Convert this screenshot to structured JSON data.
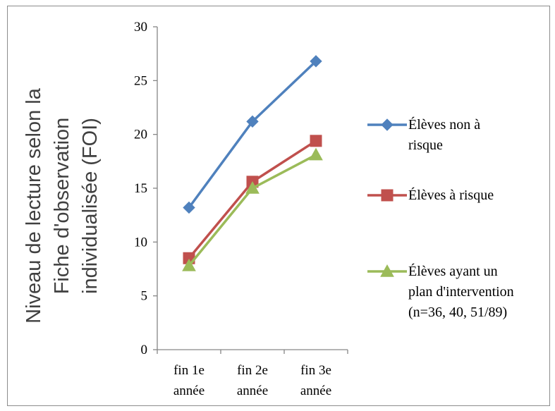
{
  "chart_data": {
    "type": "line",
    "title": "",
    "ylabel_lines": [
      "Niveau de lecture selon la",
      "Fiche d'observation",
      "individualisée (FOI)"
    ],
    "categories": [
      {
        "line1": "fin 1e",
        "line2": "année"
      },
      {
        "line1": "fin 2e",
        "line2": "année"
      },
      {
        "line1": "fin 3e",
        "line2": "année"
      }
    ],
    "ylim": [
      0,
      30
    ],
    "yticks": [
      "0",
      "5",
      "10",
      "15",
      "20",
      "25",
      "30"
    ],
    "grid": false,
    "legend_position": "right",
    "series": [
      {
        "name_lines": [
          "Élèves non à",
          "risque"
        ],
        "values": [
          13.2,
          21.2,
          26.8
        ],
        "color": "#4F81BD",
        "marker": "diamond"
      },
      {
        "name_lines": [
          "Élèves à risque"
        ],
        "values": [
          8.5,
          15.6,
          19.4
        ],
        "color": "#C0504D",
        "marker": "square"
      },
      {
        "name_lines": [
          "Élèves ayant un",
          "plan d'intervention",
          "(n=36, 40, 51/89)"
        ],
        "values": [
          7.8,
          15.0,
          18.1
        ],
        "color": "#9BBB59",
        "marker": "triangle"
      }
    ]
  }
}
